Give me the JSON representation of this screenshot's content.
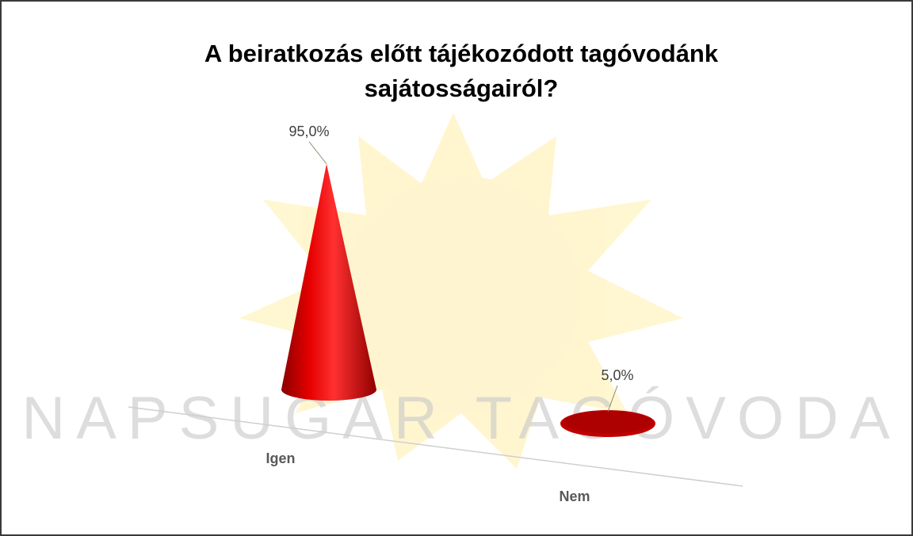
{
  "chart_data": {
    "type": "cone",
    "title": "A beiratkozás előtt tájékozódott tagóvodánk sajátosságairól?",
    "watermark": "NAPSUGAR TAGÓVODA",
    "categories": [
      "Igen",
      "Nem"
    ],
    "values": [
      95,
      5
    ],
    "value_labels": [
      "95,0%",
      "5,0%"
    ],
    "color": "#e00000"
  }
}
